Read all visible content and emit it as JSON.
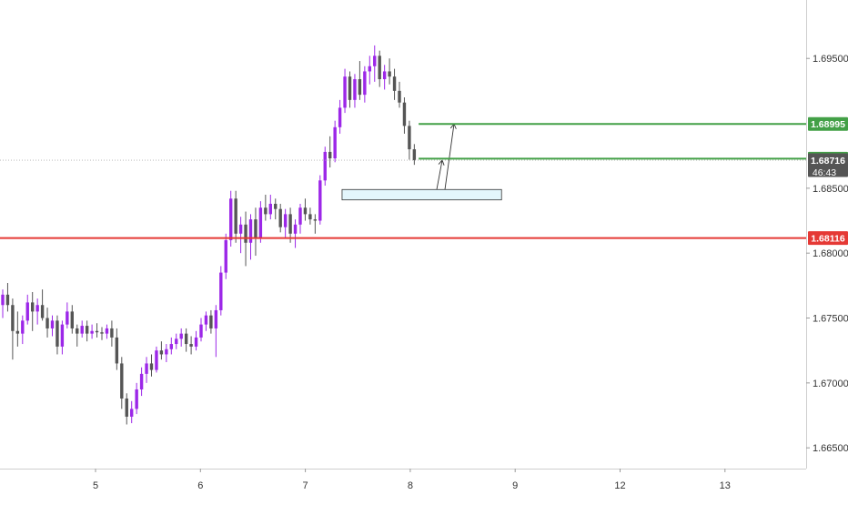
{
  "chart_data": {
    "type": "candlestick",
    "title": "",
    "xlabel": "",
    "ylabel": "",
    "ylim": [
      1.6634,
      1.6995
    ],
    "grid": false,
    "y_ticks": [
      "1.66500",
      "1.67000",
      "1.67500",
      "1.68000",
      "1.68500",
      "1.69500"
    ],
    "x_ticks": [
      {
        "label": "5",
        "day": 5
      },
      {
        "label": "6",
        "day": 6
      },
      {
        "label": "7",
        "day": 7
      },
      {
        "label": "8",
        "day": 8
      },
      {
        "label": "9",
        "day": 9
      },
      {
        "label": "12",
        "day": 10
      },
      {
        "label": "13",
        "day": 11
      }
    ],
    "colors": {
      "up": "#9c27e8",
      "down": "#555555",
      "resistance": "#e53935",
      "target": "#43a047",
      "zone_fill": "#e3f6fc",
      "zone_border": "#333333",
      "current_label": "#555555"
    },
    "candles": [
      [
        1.676,
        1.6772,
        1.675,
        1.6768
      ],
      [
        1.6768,
        1.6777,
        1.6755,
        1.676
      ],
      [
        1.676,
        1.6765,
        1.6718,
        1.674
      ],
      [
        1.674,
        1.6755,
        1.6728,
        1.6738
      ],
      [
        1.6738,
        1.6752,
        1.673,
        1.6748
      ],
      [
        1.6748,
        1.6768,
        1.6745,
        1.6762
      ],
      [
        1.6762,
        1.677,
        1.674,
        1.6755
      ],
      [
        1.6755,
        1.6765,
        1.6745,
        1.676
      ],
      [
        1.676,
        1.6772,
        1.6748,
        1.675
      ],
      [
        1.675,
        1.6758,
        1.6735,
        1.6742
      ],
      [
        1.6742,
        1.6752,
        1.6736,
        1.6748
      ],
      [
        1.6748,
        1.6752,
        1.6722,
        1.6728
      ],
      [
        1.6728,
        1.6748,
        1.6722,
        1.6745
      ],
      [
        1.6745,
        1.6762,
        1.6742,
        1.6755
      ],
      [
        1.6755,
        1.676,
        1.6738,
        1.6742
      ],
      [
        1.6742,
        1.6745,
        1.6728,
        1.6738
      ],
      [
        1.6738,
        1.6748,
        1.6735,
        1.6744
      ],
      [
        1.6744,
        1.6748,
        1.6732,
        1.6738
      ],
      [
        1.6738,
        1.6745,
        1.6734,
        1.674
      ],
      [
        1.674,
        1.6746,
        1.6735,
        1.6739
      ],
      [
        1.6739,
        1.6743,
        1.6733,
        1.6738
      ],
      [
        1.6738,
        1.6745,
        1.6734,
        1.6742
      ],
      [
        1.6742,
        1.6748,
        1.6728,
        1.6735
      ],
      [
        1.6735,
        1.6742,
        1.671,
        1.6715
      ],
      [
        1.6715,
        1.672,
        1.668,
        1.6688
      ],
      [
        1.6688,
        1.6692,
        1.6668,
        1.6674
      ],
      [
        1.6674,
        1.6686,
        1.6669,
        1.668
      ],
      [
        1.668,
        1.67,
        1.6676,
        1.6695
      ],
      [
        1.6695,
        1.6712,
        1.669,
        1.6707
      ],
      [
        1.6707,
        1.672,
        1.67,
        1.6715
      ],
      [
        1.6715,
        1.6722,
        1.6705,
        1.671
      ],
      [
        1.671,
        1.6728,
        1.6708,
        1.6725
      ],
      [
        1.6725,
        1.6732,
        1.6718,
        1.6722
      ],
      [
        1.6722,
        1.673,
        1.6716,
        1.6726
      ],
      [
        1.6726,
        1.6735,
        1.6722,
        1.673
      ],
      [
        1.673,
        1.6738,
        1.6726,
        1.6734
      ],
      [
        1.6734,
        1.6742,
        1.6728,
        1.6738
      ],
      [
        1.6738,
        1.6742,
        1.6724,
        1.673
      ],
      [
        1.673,
        1.6736,
        1.6722,
        1.6728
      ],
      [
        1.6728,
        1.674,
        1.6725,
        1.6735
      ],
      [
        1.6735,
        1.675,
        1.6732,
        1.6745
      ],
      [
        1.6745,
        1.6755,
        1.674,
        1.6752
      ],
      [
        1.6752,
        1.6756,
        1.6738,
        1.6742
      ],
      [
        1.6742,
        1.676,
        1.672,
        1.6756
      ],
      [
        1.6756,
        1.679,
        1.6752,
        1.6785
      ],
      [
        1.6785,
        1.6815,
        1.678,
        1.681
      ],
      [
        1.681,
        1.6848,
        1.6805,
        1.6842
      ],
      [
        1.6842,
        1.6848,
        1.6808,
        1.6815
      ],
      [
        1.6815,
        1.6828,
        1.68,
        1.6822
      ],
      [
        1.6822,
        1.6832,
        1.679,
        1.6808
      ],
      [
        1.6808,
        1.683,
        1.6795,
        1.6826
      ],
      [
        1.6826,
        1.6835,
        1.6798,
        1.6812
      ],
      [
        1.6812,
        1.684,
        1.6808,
        1.6835
      ],
      [
        1.6835,
        1.6845,
        1.6825,
        1.683
      ],
      [
        1.683,
        1.6845,
        1.6826,
        1.6838
      ],
      [
        1.6838,
        1.6842,
        1.6826,
        1.6834
      ],
      [
        1.6834,
        1.6838,
        1.6816,
        1.682
      ],
      [
        1.682,
        1.6834,
        1.6812,
        1.683
      ],
      [
        1.683,
        1.6835,
        1.6808,
        1.6815
      ],
      [
        1.6815,
        1.6826,
        1.6804,
        1.6822
      ],
      [
        1.6822,
        1.6838,
        1.6815,
        1.6835
      ],
      [
        1.6835,
        1.6842,
        1.6825,
        1.683
      ],
      [
        1.683,
        1.6835,
        1.6822,
        1.6826
      ],
      [
        1.6826,
        1.683,
        1.6815,
        1.6825
      ],
      [
        1.6825,
        1.686,
        1.6822,
        1.6856
      ],
      [
        1.6856,
        1.6882,
        1.6852,
        1.6878
      ],
      [
        1.6878,
        1.689,
        1.6866,
        1.6873
      ],
      [
        1.6873,
        1.6902,
        1.687,
        1.6897
      ],
      [
        1.6897,
        1.6918,
        1.6892,
        1.6912
      ],
      [
        1.6912,
        1.6942,
        1.6908,
        1.6936
      ],
      [
        1.6936,
        1.694,
        1.6912,
        1.6918
      ],
      [
        1.6918,
        1.6938,
        1.6912,
        1.6934
      ],
      [
        1.6934,
        1.6948,
        1.6918,
        1.6922
      ],
      [
        1.6922,
        1.6944,
        1.6916,
        1.694
      ],
      [
        1.694,
        1.6952,
        1.693,
        1.6944
      ],
      [
        1.6944,
        1.696,
        1.6932,
        1.6952
      ],
      [
        1.6952,
        1.6956,
        1.6928,
        1.6934
      ],
      [
        1.6934,
        1.6945,
        1.6926,
        1.694
      ],
      [
        1.694,
        1.695,
        1.693,
        1.6936
      ],
      [
        1.6936,
        1.6942,
        1.6918,
        1.6925
      ],
      [
        1.6925,
        1.6932,
        1.6912,
        1.6916
      ],
      [
        1.6916,
        1.692,
        1.6892,
        1.6898
      ],
      [
        1.6898,
        1.6902,
        1.6872,
        1.688
      ],
      [
        1.688,
        1.6884,
        1.6868,
        1.68716
      ]
    ],
    "resistance_level": {
      "value": 1.68116,
      "label": "1.68116"
    },
    "target_levels": [
      {
        "value": 1.68995,
        "label": "1.68995"
      },
      {
        "value": 1.68728,
        "label": "1.68728"
      }
    ],
    "current_price": {
      "value": 1.68716,
      "label": "1.68716",
      "countdown": "46:43"
    },
    "demand_zone": {
      "y_top": 1.6849,
      "y_bottom": 1.6841,
      "x_start_day": 7.35,
      "x_end_day": 8.87
    }
  }
}
